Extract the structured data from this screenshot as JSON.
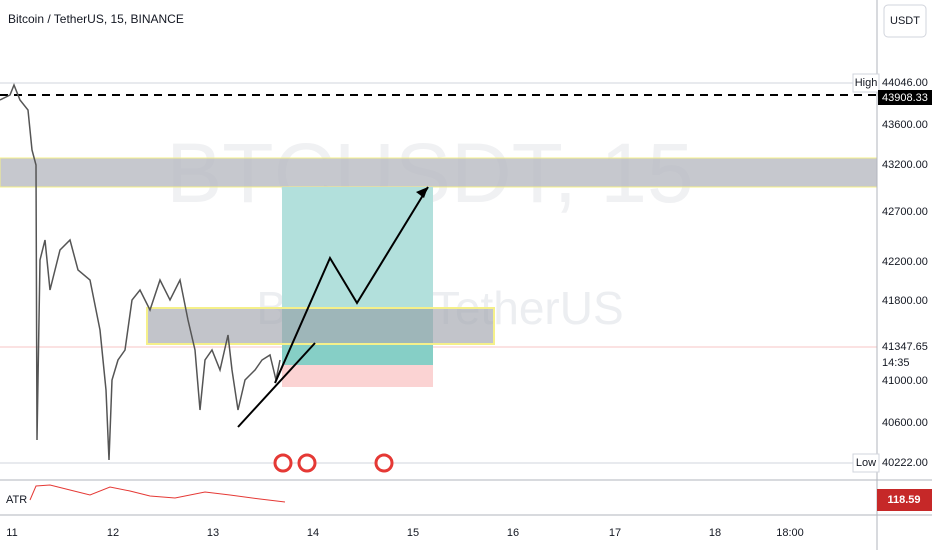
{
  "header": {
    "title": "Bitcoin / TetherUS, 15, BINANCE",
    "currency": "USDT"
  },
  "watermark": {
    "symbol": "BTCUSDT, 15",
    "name": "Bitcoin / TetherUS"
  },
  "price_axis": {
    "high_label": "High",
    "low_label": "Low",
    "high": "44046.00",
    "line": "43908.33",
    "labels": [
      "43600.00",
      "43200.00",
      "42700.00",
      "42200.00",
      "41800.00",
      "41000.00",
      "40600.00"
    ],
    "last": "41347.65",
    "countdown": "14:35",
    "low": "40222.00"
  },
  "time_axis": [
    "11",
    "12",
    "13",
    "14",
    "15",
    "16",
    "17",
    "18",
    "18:00"
  ],
  "atr": {
    "label": "ATR",
    "value": "118.59"
  }
}
